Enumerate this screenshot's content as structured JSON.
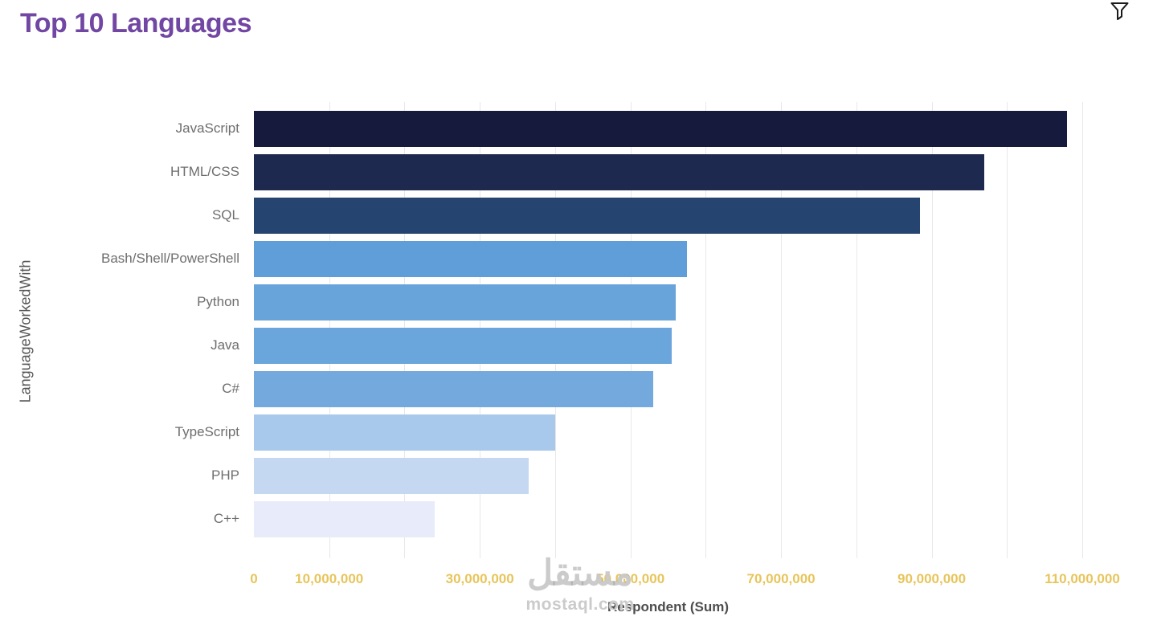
{
  "header": {
    "title": "Top 10 Languages"
  },
  "watermark": {
    "arabic": "مستقل",
    "site": "mostaql.com"
  },
  "chart_data": {
    "type": "bar",
    "orientation": "horizontal",
    "title": "Top 10 Languages",
    "xlabel": "Respondent (Sum)",
    "ylabel": "LanguageWorkedWith",
    "xlim": [
      0,
      110000000
    ],
    "grid": true,
    "gridline_step": 10000000,
    "categories": [
      "JavaScript",
      "HTML/CSS",
      "SQL",
      "Bash/Shell/PowerShell",
      "Python",
      "Java",
      "C#",
      "TypeScript",
      "PHP",
      "C++"
    ],
    "values": [
      108000000,
      97000000,
      88500000,
      57500000,
      56000000,
      55500000,
      53000000,
      40000000,
      36500000,
      24000000
    ],
    "bar_colors": [
      "#161a3c",
      "#1e2950",
      "#264470",
      "#5f9ed8",
      "#68a3da",
      "#6aa5db",
      "#73a9dd",
      "#a8c8ec",
      "#c4d8f2",
      "#e8ebfa"
    ],
    "x_tick_values": [
      0,
      10000000,
      30000000,
      50000000,
      70000000,
      90000000,
      110000000
    ],
    "x_tick_labels": [
      "0",
      "10,000,000",
      "30,000,000",
      "50,000,000",
      "70,000,000",
      "90,000,000",
      "110,000,000"
    ],
    "tick_color": "#e7c55c",
    "legend": "none"
  }
}
